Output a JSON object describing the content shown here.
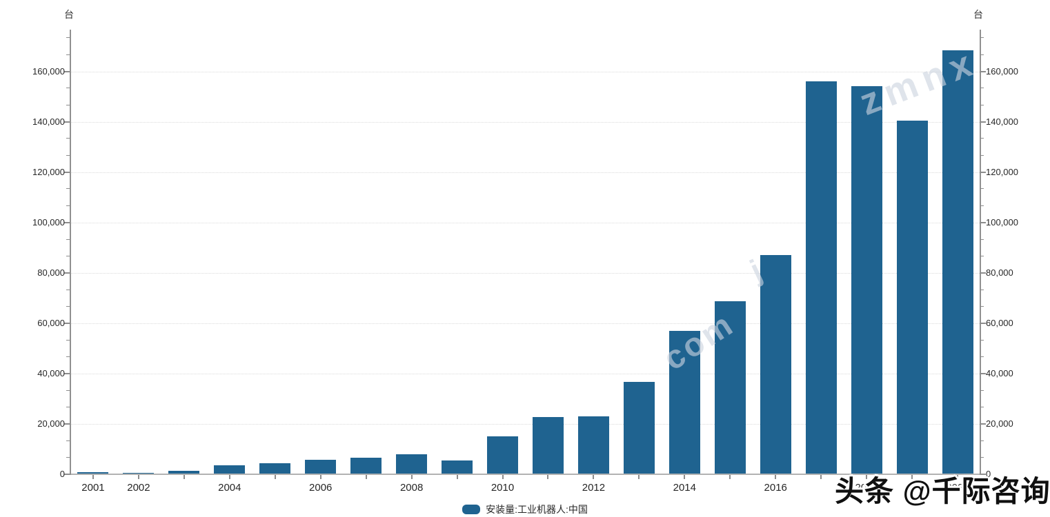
{
  "chart_data": {
    "type": "bar",
    "title": "",
    "unit_label": "台",
    "categories": [
      "2001",
      "2002",
      "2003",
      "2004",
      "2005",
      "2006",
      "2007",
      "2008",
      "2009",
      "2010",
      "2011",
      "2012",
      "2013",
      "2014",
      "2015",
      "2016",
      "2017",
      "2018",
      "2019",
      "2020"
    ],
    "values": [
      700,
      600,
      1500,
      3500,
      4500,
      5800,
      6600,
      7900,
      5500,
      15000,
      22600,
      23000,
      36600,
      57000,
      68600,
      87000,
      156000,
      154000,
      140500,
      168400
    ],
    "series_name": "安装量:工业机器人:中国",
    "xlabel": "",
    "ylabel": "台",
    "ylim": [
      0,
      176600
    ],
    "y_major_step": 20000,
    "y_minor_divisions_per_major": 3,
    "y_tick_labels": [
      "0",
      "20,000",
      "40,000",
      "60,000",
      "80,000",
      "100,000",
      "120,000",
      "140,000",
      "160,000"
    ],
    "x_labeled_years": [
      "2001",
      "2002",
      "2004",
      "2006",
      "2008",
      "2010",
      "2012",
      "2014",
      "2016",
      "2018",
      "2020"
    ],
    "grid": "horizontal-dotted",
    "dual_y_axis": true,
    "legend_position": "bottom-center",
    "bar_color": "#1f6390"
  },
  "legend": {
    "label": "安装量:工业机器人:中国"
  },
  "watermarks": {
    "brand": "头条 @千际咨询",
    "fragments": [
      "zmnx",
      "com",
      "j"
    ]
  }
}
